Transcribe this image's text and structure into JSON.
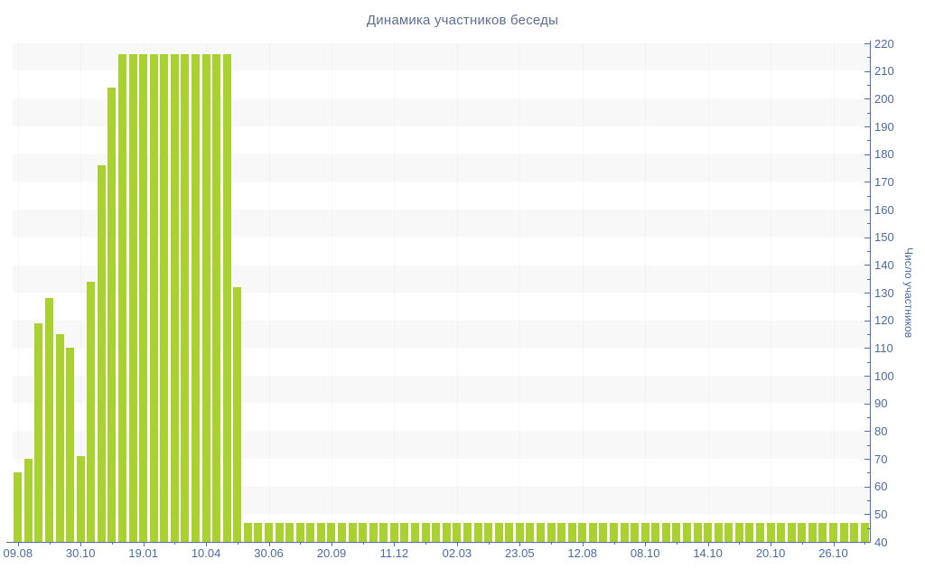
{
  "title": "Динамика участников беседы",
  "chart_data": {
    "type": "bar",
    "title": "Динамика участников беседы",
    "xlabel": "",
    "ylabel": "Число участников",
    "ylim": [
      40,
      220
    ],
    "y_tick_step": 10,
    "y_minor_tick_step": 5,
    "y_tick_labels": [
      220,
      210,
      200,
      190,
      180,
      170,
      160,
      150,
      140,
      130,
      120,
      110,
      100,
      90,
      80,
      70,
      60,
      50,
      40
    ],
    "x_tick_labels": [
      "09.08",
      "30.10",
      "19.01",
      "10.04",
      "30.06",
      "20.09",
      "11.12",
      "02.03",
      "23.05",
      "12.08",
      "08.10",
      "14.10",
      "20.10",
      "26.10"
    ],
    "x_tick_every": 6,
    "grid": "horizontal-bands",
    "legend": "none",
    "bar_color": "#a9d230",
    "axis_color": "#506ead",
    "label_color": "#4a6aa6",
    "title_color": "#5b6f96",
    "stripe_colors": [
      "#ffffff",
      "#f8f8f9"
    ],
    "values": [
      65,
      70,
      119,
      128,
      115,
      110,
      71,
      134,
      176,
      204,
      216,
      216,
      216,
      216,
      216,
      216,
      216,
      216,
      216,
      216,
      216,
      132,
      47,
      47,
      47,
      47,
      47,
      47,
      47,
      47,
      47,
      47,
      47,
      47,
      47,
      47,
      47,
      47,
      47,
      47,
      47,
      47,
      47,
      47,
      47,
      47,
      47,
      47,
      47,
      47,
      47,
      47,
      47,
      47,
      47,
      47,
      47,
      47,
      47,
      47,
      47,
      47,
      47,
      47,
      47,
      47,
      47,
      47,
      47,
      47,
      47,
      47,
      47,
      47,
      47,
      47,
      47,
      47,
      47,
      47,
      47,
      47
    ]
  }
}
